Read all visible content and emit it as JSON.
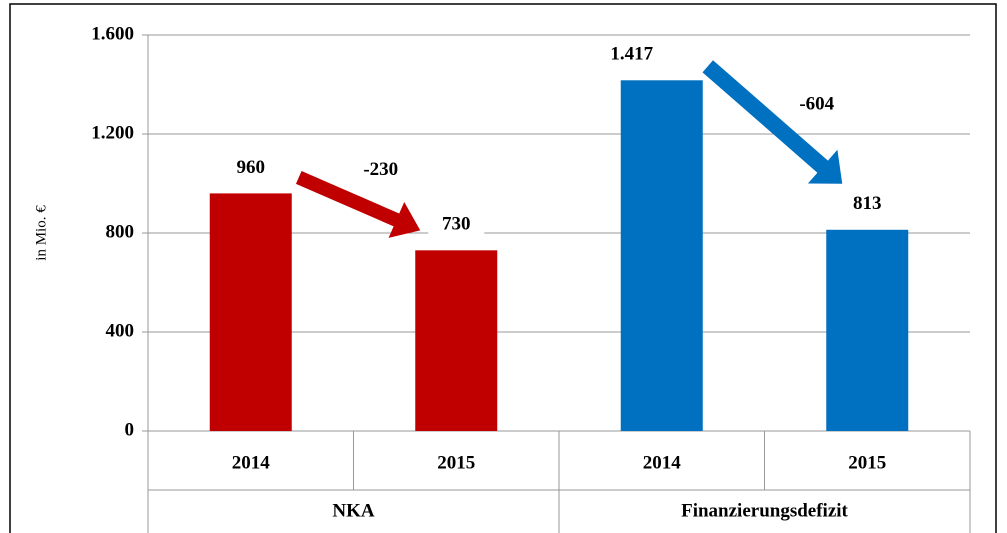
{
  "chart_data": {
    "type": "bar",
    "y_label": "in Mio. €",
    "groups": [
      "NKA",
      "Finanzierungsdefizit"
    ],
    "categories": [
      "2014",
      "2015",
      "2014",
      "2015"
    ],
    "values": [
      960,
      730,
      1417,
      813
    ],
    "value_labels": [
      "960",
      "730",
      "1.417",
      "813"
    ],
    "colors": [
      "#c00000",
      "#c00000",
      "#0070c0",
      "#0070c0"
    ],
    "ylim": [
      0,
      1600
    ],
    "yticks": [
      0,
      400,
      800,
      {
        "value": 1200,
        "label": "1.200"
      },
      {
        "value": 1600,
        "label": "1.600"
      }
    ],
    "grid": true,
    "changes": [
      -230,
      -604
    ]
  }
}
